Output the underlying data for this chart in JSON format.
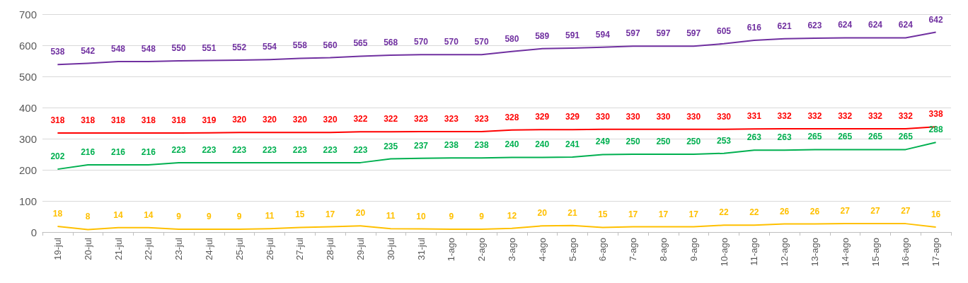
{
  "chart_data": {
    "type": "line",
    "categories": [
      "19-jul",
      "20-jul",
      "21-jul",
      "22-jul",
      "23-jul",
      "24-jul",
      "25-jul",
      "26-jul",
      "27-jul",
      "28-jul",
      "29-jul",
      "30-jul",
      "31-jul",
      "1-ago",
      "2-ago",
      "3-ago",
      "4-ago",
      "5-ago",
      "6-ago",
      "7-ago",
      "8-ago",
      "9-ago",
      "10-ago",
      "11-ago",
      "12-ago",
      "13-ago",
      "14-ago",
      "15-ago",
      "16-ago",
      "17-ago"
    ],
    "series": [
      {
        "color": "#7030a0",
        "values": [
          538,
          542,
          548,
          548,
          550,
          551,
          552,
          554,
          558,
          560,
          565,
          568,
          570,
          570,
          570,
          580,
          589,
          591,
          594,
          597,
          597,
          597,
          605,
          616,
          621,
          623,
          624,
          624,
          624,
          642
        ]
      },
      {
        "color": "#ff0000",
        "values": [
          318,
          318,
          318,
          318,
          318,
          319,
          320,
          320,
          320,
          320,
          322,
          322,
          323,
          323,
          323,
          328,
          329,
          329,
          330,
          330,
          330,
          330,
          330,
          331,
          332,
          332,
          332,
          332,
          332,
          338
        ]
      },
      {
        "color": "#00b050",
        "values": [
          202,
          216,
          216,
          216,
          223,
          223,
          223,
          223,
          223,
          223,
          223,
          235,
          237,
          238,
          238,
          240,
          240,
          241,
          249,
          250,
          250,
          250,
          253,
          263,
          263,
          265,
          265,
          265,
          265,
          288
        ]
      },
      {
        "color": "#ffc000",
        "values": [
          18,
          8,
          14,
          14,
          9,
          9,
          9,
          11,
          15,
          17,
          20,
          11,
          10,
          9,
          9,
          12,
          20,
          21,
          15,
          17,
          17,
          17,
          22,
          22,
          26,
          26,
          27,
          27,
          27,
          16
        ]
      }
    ],
    "ylim": [
      0,
      700
    ],
    "yticks": [
      0,
      100,
      200,
      300,
      400,
      500,
      600,
      700
    ],
    "grid": "y",
    "data_labels": true,
    "marker": "none",
    "line_style": "solid"
  }
}
